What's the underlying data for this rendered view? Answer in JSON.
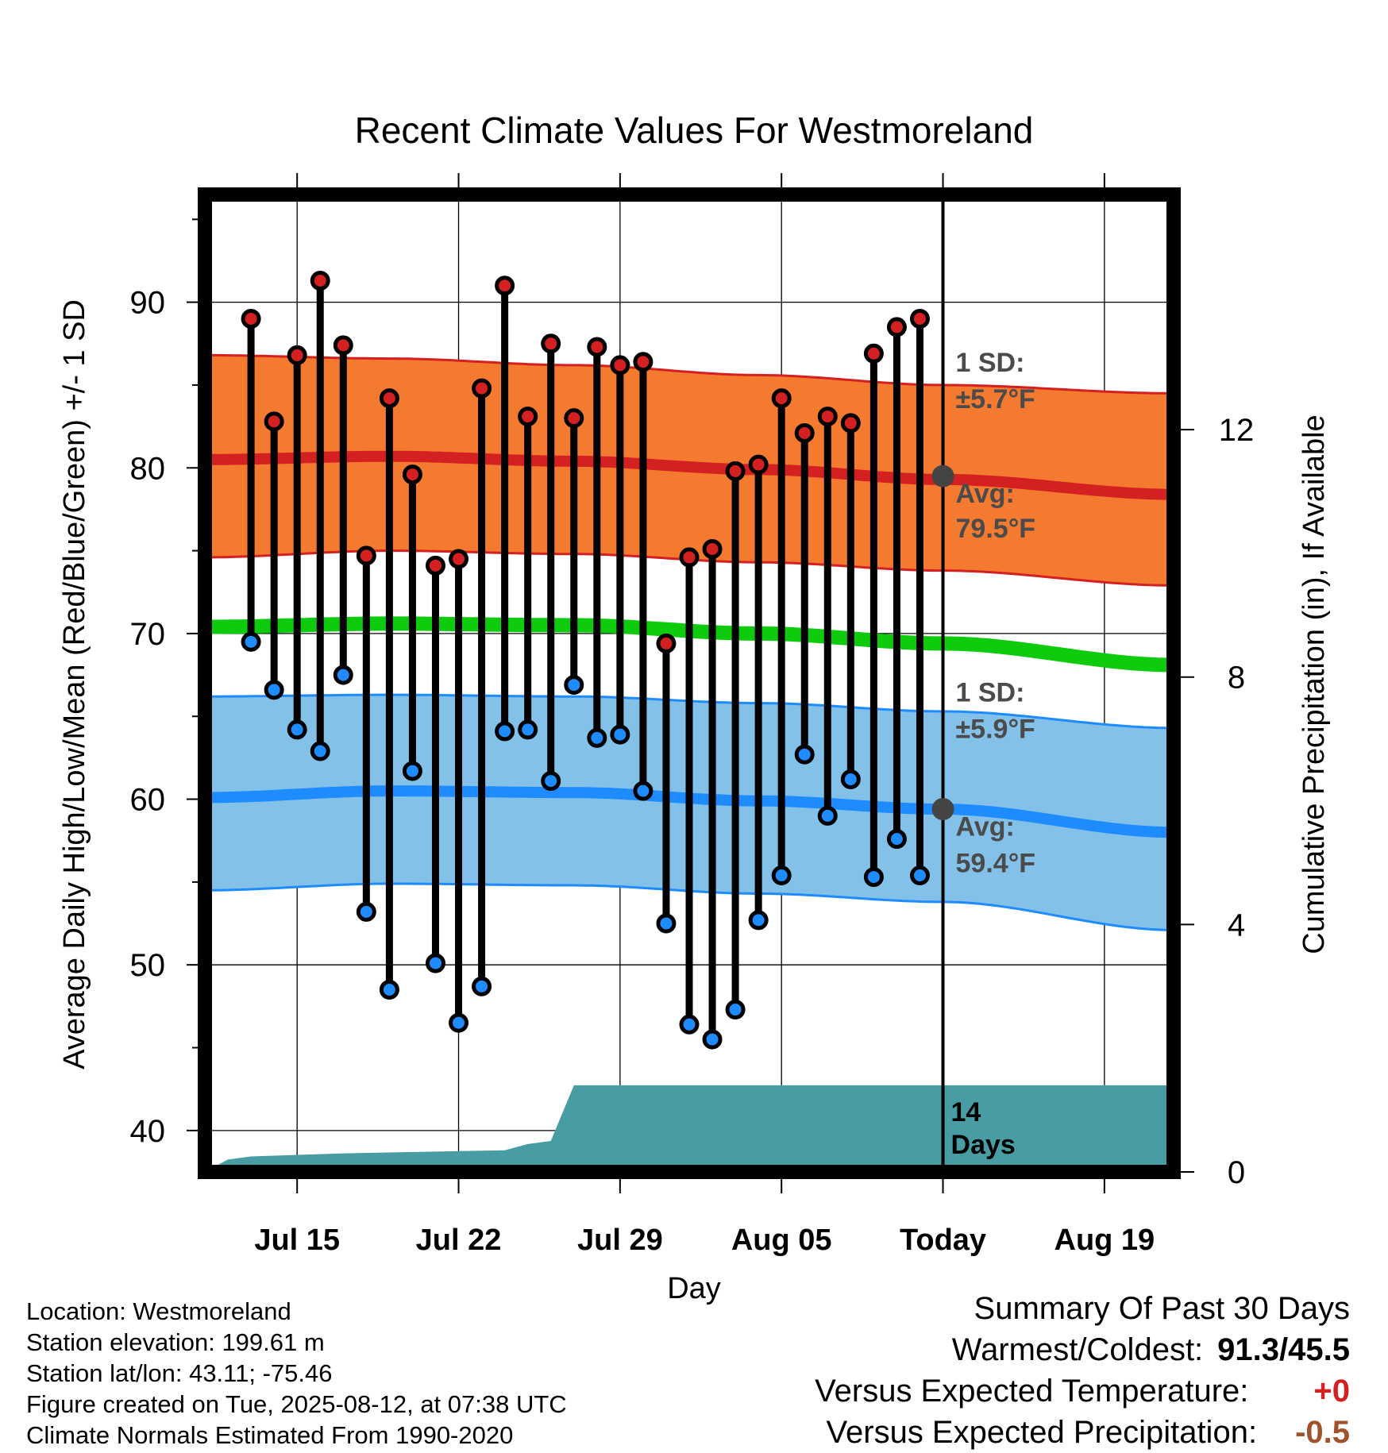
{
  "chart_data": {
    "type": "line",
    "title": "Recent Climate Values For Westmoreland",
    "xlabel": "Day",
    "ylabel": "Average Daily High/Low/Mean (Red/Blue/Green) +/- 1 SD",
    "y2label": "Cumulative Precipitation (in), If Available",
    "ylim": [
      37.5,
      96.5
    ],
    "y2lim": [
      0,
      15.8
    ],
    "x_start": "2025-07-11",
    "x_end": "2025-08-22",
    "today": "2025-08-12",
    "x_ticks": [
      {
        "date": "2025-07-15",
        "label": "Jul 15"
      },
      {
        "date": "2025-07-22",
        "label": "Jul 22"
      },
      {
        "date": "2025-07-29",
        "label": "Jul 29"
      },
      {
        "date": "2025-08-05",
        "label": "Aug 05"
      },
      {
        "date": "2025-08-12",
        "label": "Today"
      },
      {
        "date": "2025-08-19",
        "label": "Aug 19"
      }
    ],
    "y_ticks": [
      40,
      50,
      60,
      70,
      80,
      90
    ],
    "y2_ticks": [
      0,
      4,
      8,
      12
    ],
    "grid": true,
    "normal_curves": {
      "high_mean": [
        80.5,
        80.7,
        80.4,
        79.9,
        79.3,
        78.4
      ],
      "high_upper": [
        86.8,
        86.6,
        86.2,
        85.6,
        85.0,
        84.5
      ],
      "high_lower": [
        74.6,
        75.0,
        74.8,
        74.3,
        73.8,
        72.9
      ],
      "mean": [
        70.4,
        70.6,
        70.5,
        70.0,
        69.4,
        68.1
      ],
      "low_mean": [
        60.1,
        60.5,
        60.4,
        59.9,
        59.4,
        58.0
      ],
      "low_upper": [
        66.2,
        66.3,
        66.2,
        65.8,
        65.3,
        64.3
      ],
      "low_lower": [
        54.5,
        54.9,
        54.8,
        54.3,
        53.8,
        52.1
      ],
      "dates": [
        "2025-07-11",
        "2025-07-19",
        "2025-07-27",
        "2025-08-04",
        "2025-08-12",
        "2025-08-22"
      ]
    },
    "series": [
      {
        "name": "High",
        "x": [
          "2025-07-13",
          "2025-07-14",
          "2025-07-15",
          "2025-07-16",
          "2025-07-17",
          "2025-07-18",
          "2025-07-19",
          "2025-07-20",
          "2025-07-21",
          "2025-07-22",
          "2025-07-23",
          "2025-07-24",
          "2025-07-25",
          "2025-07-26",
          "2025-07-27",
          "2025-07-28",
          "2025-07-29",
          "2025-07-30",
          "2025-07-31",
          "2025-08-01",
          "2025-08-02",
          "2025-08-03",
          "2025-08-04",
          "2025-08-05",
          "2025-08-06",
          "2025-08-07",
          "2025-08-08",
          "2025-08-09",
          "2025-08-10",
          "2025-08-11"
        ],
        "values": [
          89.0,
          82.8,
          86.8,
          91.3,
          87.4,
          74.7,
          84.2,
          79.6,
          74.1,
          74.5,
          84.8,
          91.0,
          83.1,
          87.5,
          83.0,
          87.3,
          86.2,
          86.4,
          69.4,
          74.6,
          75.1,
          79.8,
          80.2,
          84.2,
          82.1,
          83.1,
          82.7,
          86.9,
          88.5,
          89.0
        ]
      },
      {
        "name": "Low",
        "x": [
          "2025-07-13",
          "2025-07-14",
          "2025-07-15",
          "2025-07-16",
          "2025-07-17",
          "2025-07-18",
          "2025-07-19",
          "2025-07-20",
          "2025-07-21",
          "2025-07-22",
          "2025-07-23",
          "2025-07-24",
          "2025-07-25",
          "2025-07-26",
          "2025-07-27",
          "2025-07-28",
          "2025-07-29",
          "2025-07-30",
          "2025-07-31",
          "2025-08-01",
          "2025-08-02",
          "2025-08-03",
          "2025-08-04",
          "2025-08-05",
          "2025-08-06",
          "2025-08-07",
          "2025-08-08",
          "2025-08-09",
          "2025-08-10",
          "2025-08-11"
        ],
        "values": [
          69.5,
          66.6,
          64.2,
          62.9,
          67.5,
          53.2,
          48.5,
          61.7,
          50.1,
          46.5,
          48.7,
          64.1,
          64.2,
          61.1,
          66.9,
          63.7,
          63.9,
          60.5,
          52.5,
          46.4,
          45.5,
          47.3,
          52.7,
          55.4,
          62.7,
          59.0,
          61.2,
          55.3,
          57.6,
          55.4
        ]
      },
      {
        "name": "Cumulative Precipitation",
        "x": [
          "2025-07-11",
          "2025-07-12",
          "2025-07-13",
          "2025-07-17",
          "2025-07-24",
          "2025-07-25",
          "2025-07-26",
          "2025-07-27",
          "2025-08-12",
          "2025-08-22"
        ],
        "values": [
          0,
          0.2,
          0.25,
          0.3,
          0.35,
          0.45,
          0.5,
          1.4,
          1.4,
          1.4
        ]
      }
    ],
    "annotations": {
      "high_sd_label": "1 SD:",
      "high_sd_value": "±5.7°F",
      "high_avg_label": "Avg:",
      "high_avg_value": "79.5°F",
      "high_avg": 79.5,
      "low_sd_label": "1 SD:",
      "low_sd_value": "±5.9°F",
      "low_avg_label": "Avg:",
      "low_avg_value": "59.4°F",
      "low_avg": 59.4,
      "days_number": "14",
      "days_label": "Days"
    },
    "colors": {
      "high_band": "#f47a30",
      "high_line": "#d42020",
      "mean_line": "#0ecb0e",
      "low_band": "#83c1e9",
      "low_line": "#1e8bff",
      "precip": "#479da3",
      "high_dot": "#d42020",
      "low_dot": "#1e8bff",
      "annotation_text": "#4b4b4b"
    }
  },
  "station_info": [
    "Location: Westmoreland",
    "Station elevation: 199.61 m",
    "Station lat/lon: 43.11; -75.46",
    "Figure created on Tue, 2025-08-12, at 07:38 UTC",
    "Climate Normals Estimated From 1990-2020"
  ],
  "summary": {
    "title": "Summary Of Past 30 Days",
    "warm_cold_label": "Warmest/Coldest:",
    "warm_cold_value": "91.3/45.5",
    "temp_label": "Versus Expected Temperature:",
    "temp_value": "+0",
    "temp_color": "#d42020",
    "precip_label": "Versus Expected Precipitation:",
    "precip_value": "-0.5",
    "precip_color": "#a0522d"
  }
}
